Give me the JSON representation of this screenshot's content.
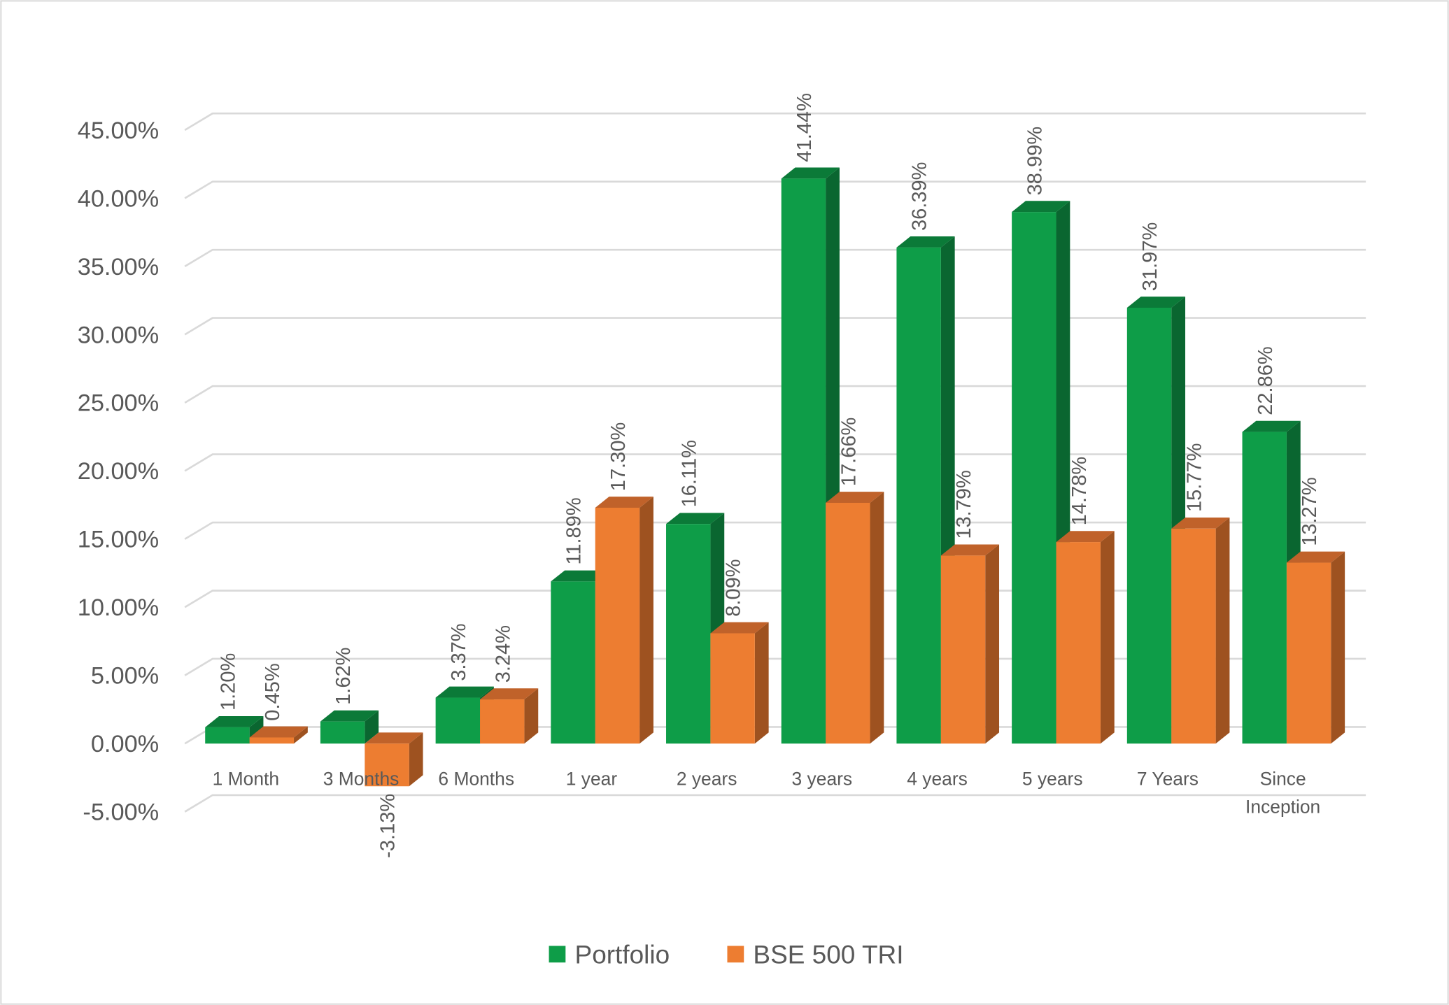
{
  "chart_data": {
    "type": "bar",
    "title": "",
    "xlabel": "",
    "ylabel": "",
    "ylim": [
      -5,
      45
    ],
    "yticks": [
      "-5.00%",
      "0.00%",
      "5.00%",
      "10.00%",
      "15.00%",
      "20.00%",
      "25.00%",
      "30.00%",
      "35.00%",
      "40.00%",
      "45.00%"
    ],
    "ytick_values": [
      -5,
      0,
      5,
      10,
      15,
      20,
      25,
      30,
      35,
      40,
      45
    ],
    "grid": true,
    "legend_position": "bottom",
    "categories": [
      "1 Month",
      "3 Months",
      "6 Months",
      "1 year",
      "2 years",
      "3 years",
      "4 years",
      "5 years",
      "7 Years",
      "Since Inception"
    ],
    "series": [
      {
        "name": "Portfolio",
        "color": "#0e9d48",
        "side": "#0a6630",
        "top": "#0b7a38",
        "values": [
          1.2,
          1.62,
          3.37,
          11.89,
          16.11,
          41.44,
          36.39,
          38.99,
          31.97,
          22.86
        ],
        "labels": [
          "1.20%",
          "1.62%",
          "3.37%",
          "11.89%",
          "16.11%",
          "41.44%",
          "36.39%",
          "38.99%",
          "31.97%",
          "22.86%"
        ]
      },
      {
        "name": "BSE 500 TRI",
        "color": "#ed7d31",
        "side": "#9e5220",
        "top": "#c0622a",
        "values": [
          0.45,
          -3.13,
          3.24,
          17.3,
          8.09,
          17.66,
          13.79,
          14.78,
          15.77,
          13.27
        ],
        "labels": [
          "0.45%",
          "-3.13%",
          "3.24%",
          "17.30%",
          "8.09%",
          "17.66%",
          "13.79%",
          "14.78%",
          "15.77%",
          "13.27%"
        ]
      }
    ]
  }
}
